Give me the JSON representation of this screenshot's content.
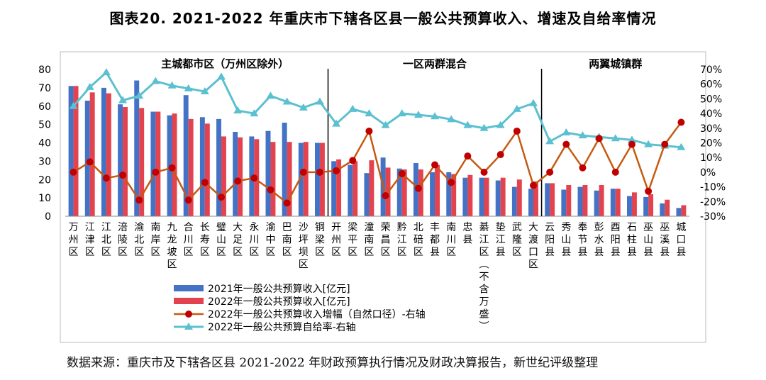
{
  "title": "图表20. 2021-2022 年重庆市下辖各区县一般公共预算收入、增速及自给率情况",
  "source": "数据来源：重庆市及下辖各区县 2021-2022 年财政预算执行情况及财政决算报告，新世纪评级整理",
  "chart_data": {
    "type": "bar+line",
    "groups": [
      {
        "label": "主城都市区（万州区除外）",
        "start": 0,
        "end": 16
      },
      {
        "label": "一区两群混合",
        "start": 16,
        "end": 29
      },
      {
        "label": "两翼城镇群",
        "start": 29,
        "end": 38
      }
    ],
    "categories": [
      "万州区",
      "江津区",
      "江北区",
      "涪陵区",
      "渝北区",
      "南岸区",
      "九龙坡区",
      "合川区",
      "长寿区",
      "璧山区",
      "大足区",
      "永川区",
      "渝中区",
      "巴南区",
      "沙坪坝区",
      "铜梁区",
      "开州区",
      "梁平区",
      "潼南区",
      "荣昌区",
      "黔江区",
      "北碚区",
      "丰都县",
      "南川区",
      "忠县",
      "綦江区(不含万盛)",
      "垫江县",
      "武隆区",
      "大渡口区",
      "云阳县",
      "秀山县",
      "奉节县",
      "彭水县",
      "酉阳县",
      "石柱县",
      "巫山县",
      "巫溪县",
      "城口县"
    ],
    "series": [
      {
        "name": "2021年一般公共预算收入[亿元]",
        "axis": "left",
        "color": "#4472C4",
        "values": [
          71,
          63,
          70,
          61,
          74,
          57,
          55,
          66,
          54,
          53,
          46,
          43.5,
          46.5,
          51,
          40,
          40,
          30,
          28,
          23.5,
          32,
          26,
          29,
          24,
          24,
          21,
          21,
          19.5,
          16,
          15,
          18,
          14.5,
          16,
          14,
          15,
          11,
          10.5,
          7,
          4.5
        ]
      },
      {
        "name": "2022年一般公共预算收入[亿元]",
        "axis": "left",
        "color": "#E3434E",
        "values": [
          71,
          67.5,
          67,
          59.5,
          59,
          57,
          56,
          53,
          50.5,
          43.5,
          43,
          42,
          40.5,
          40.5,
          40.5,
          40,
          31,
          30,
          30.5,
          26.5,
          25.5,
          25.5,
          28,
          23,
          22.5,
          21,
          21,
          20,
          19,
          18,
          17,
          17,
          17,
          15,
          13,
          12,
          9,
          6
        ]
      },
      {
        "name": "2022年一般公共预算收入增幅（自然口径）-右轴",
        "axis": "right",
        "color": "#C55A11",
        "values": [
          0,
          7,
          -4,
          -2,
          -19,
          0,
          3,
          -19,
          -7,
          -17,
          -6,
          -4,
          -12,
          -21,
          0,
          0,
          1,
          8,
          28,
          -16,
          -1,
          -11,
          5,
          -7,
          11,
          0,
          12,
          28,
          -9,
          0,
          19,
          3,
          23,
          0,
          19,
          -13,
          19,
          34
        ]
      },
      {
        "name": "2022年一般公共预算自给率-右轴",
        "axis": "right",
        "color": "#5BC0D0",
        "values": [
          45,
          58,
          68,
          49,
          52,
          62,
          59,
          57,
          55,
          65,
          42,
          40,
          52,
          48,
          44,
          48,
          33,
          43,
          40,
          32,
          40,
          39,
          38,
          36,
          32,
          30,
          32,
          43,
          47,
          21,
          27,
          25,
          24,
          23,
          22,
          19,
          18,
          17
        ]
      }
    ],
    "y_left": {
      "min": 0,
      "max": 80,
      "ticks": [
        "0",
        "10",
        "20",
        "30",
        "40",
        "50",
        "60",
        "70",
        "80"
      ]
    },
    "y_right": {
      "min": -30,
      "max": 70,
      "ticks": [
        "-30%",
        "-20%",
        "-10%",
        "0%",
        "10%",
        "20%",
        "30%",
        "40%",
        "50%",
        "60%",
        "70%"
      ]
    }
  }
}
